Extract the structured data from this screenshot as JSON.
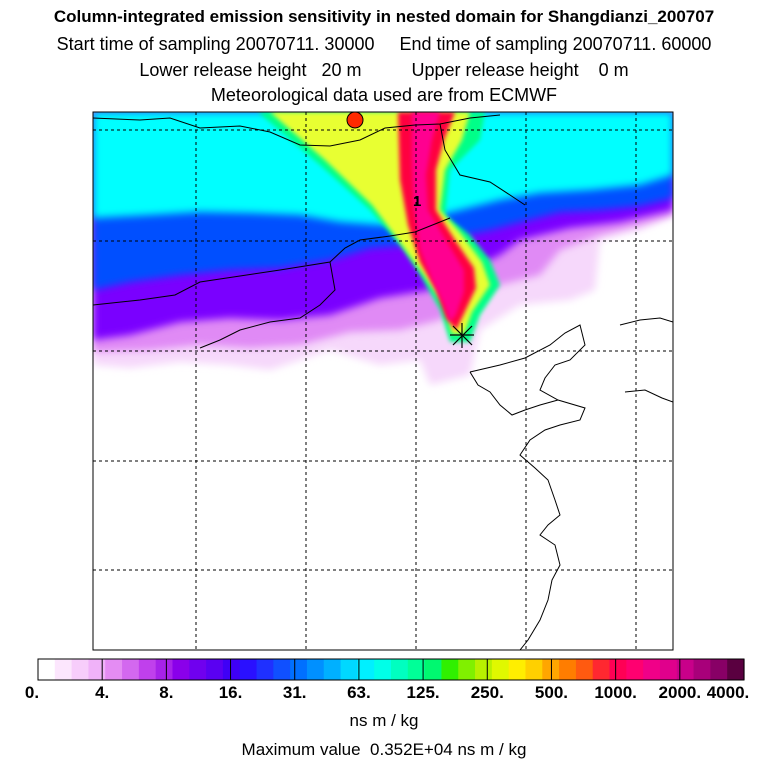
{
  "header": {
    "title": "Column-integrated emission sensitivity in nested domain for Shangdianzi_200707",
    "sampling": "Start time of sampling 20070711. 30000     End time of sampling 20070711. 60000",
    "release": "Lower release height   20 m          Upper release height    0 m",
    "met": "Meteorological data used are from ECMWF"
  },
  "map": {
    "receptor_label": "1",
    "field_colors": {
      "cyan": "#00ffff",
      "blue": "#0050ff",
      "purple": "#7a00ff",
      "light_violet": "#e08af5",
      "pale": "#f6d8fb",
      "yellow": "#e8ff30",
      "green": "#00ff88",
      "red": "#ff0040",
      "magenta": "#ff0090",
      "peak_marker": "#ff2a00"
    }
  },
  "colorbar": {
    "tick_labels": [
      "0.",
      "4.",
      "8.",
      "16.",
      "31.",
      "63.",
      "125.",
      "250.",
      "500.",
      "1000.",
      "2000.",
      "4000."
    ],
    "colors": [
      "#ffffff",
      "#fce6fd",
      "#f7cdfb",
      "#f0b2f9",
      "#e48cf3",
      "#d368ef",
      "#c040ec",
      "#a722e9",
      "#8a00ea",
      "#7000ef",
      "#5a00f2",
      "#3f00f6",
      "#2a10ff",
      "#1f30ff",
      "#1050ff",
      "#0070ff",
      "#0090ff",
      "#00b0ff",
      "#00d8ff",
      "#00f0ff",
      "#00ffe8",
      "#00ffc0",
      "#00ff98",
      "#00f870",
      "#30f000",
      "#80f000",
      "#b8f000",
      "#e0f800",
      "#ffee00",
      "#ffd000",
      "#ffa600",
      "#ff7d00",
      "#ff5a10",
      "#ff2830",
      "#ff0055",
      "#ff0070",
      "#f00088",
      "#e0008c",
      "#c8008a",
      "#a8007a",
      "#880066",
      "#5a0040"
    ],
    "units": "ns m / kg"
  },
  "footer": {
    "max_value": "Maximum value  0.352E+04 ns m / kg"
  }
}
